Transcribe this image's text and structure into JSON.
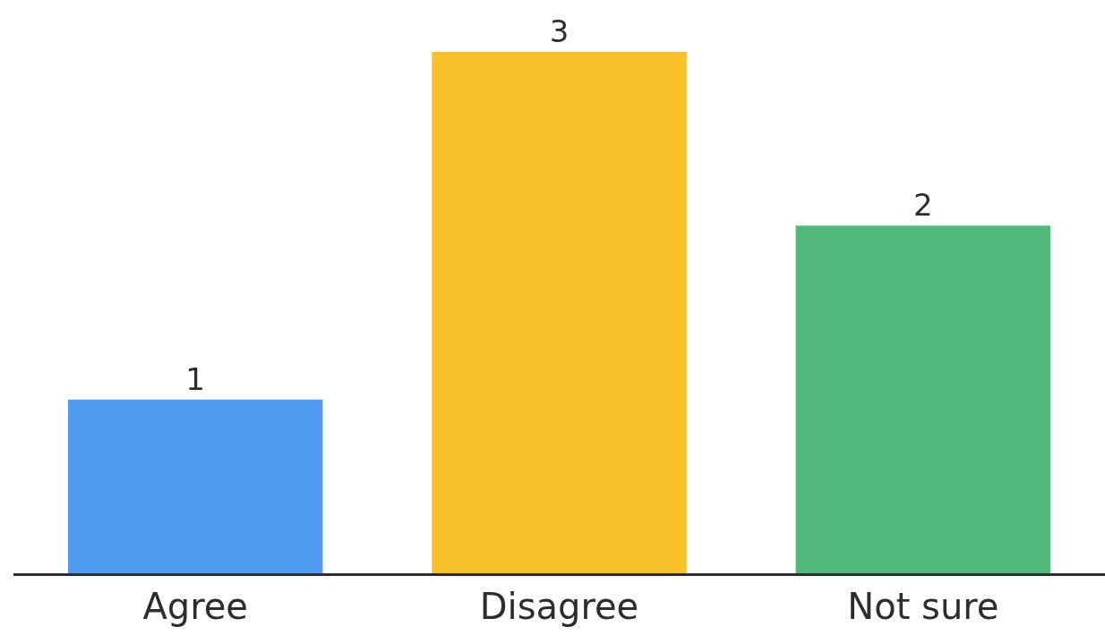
{
  "chart_data": {
    "type": "bar",
    "categories": [
      "Agree",
      "Disagree",
      "Not sure"
    ],
    "values": [
      1,
      3,
      2
    ],
    "colors": [
      "#519cf0",
      "#f8c02a",
      "#52b77b"
    ],
    "data_labels": true
  }
}
